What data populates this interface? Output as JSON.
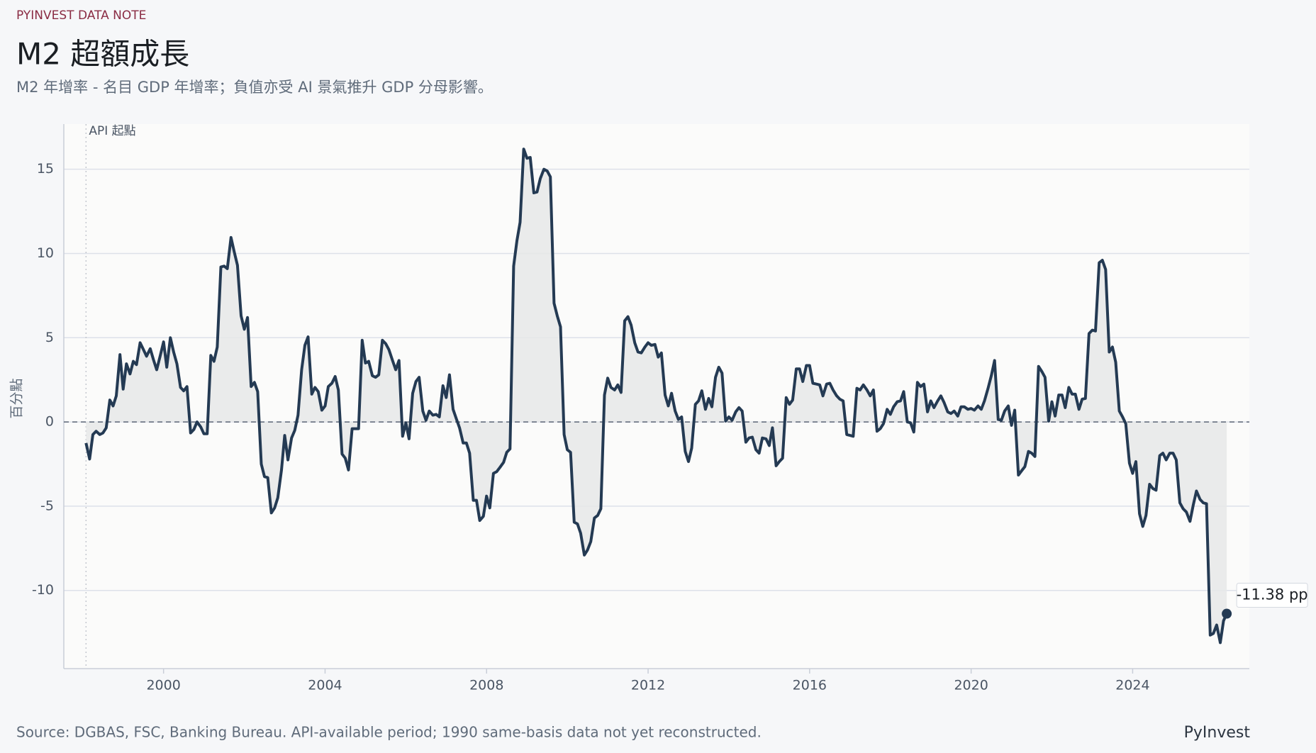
{
  "kicker": "PYINVEST DATA NOTE",
  "chart_data": {
    "type": "line",
    "title": "M2 超額成長",
    "subtitle": "M2 年增率 - 名目 GDP 年增率；負值亦受 AI 景氣推升 GDP 分母影響。",
    "y_label": "百分點",
    "color": "#243a53",
    "fill_color": "#e6e8e8",
    "grid": true,
    "xlim": [
      1997.53,
      2026.89
    ],
    "xticks": [
      2000,
      2004,
      2008,
      2012,
      2016,
      2020,
      2024
    ],
    "ylim": [
      -14.64,
      17.68
    ],
    "yticks": [
      -10,
      -5,
      0,
      5,
      10,
      15
    ],
    "reference_y": 0,
    "annotation": {
      "text": "API 起點",
      "x": 1998.08
    },
    "end_label": "-11.38 pp",
    "x": [
      1998.08,
      1998.17,
      1998.25,
      1998.33,
      1998.42,
      1998.5,
      1998.58,
      1998.67,
      1998.75,
      1998.83,
      1998.92,
      1999,
      1999.08,
      1999.17,
      1999.25,
      1999.33,
      1999.42,
      1999.5,
      1999.58,
      1999.67,
      1999.75,
      1999.83,
      1999.92,
      2000,
      2000.08,
      2000.17,
      2000.25,
      2000.33,
      2000.42,
      2000.5,
      2000.58,
      2000.67,
      2000.75,
      2000.83,
      2000.92,
      2001,
      2001.08,
      2001.17,
      2001.25,
      2001.33,
      2001.42,
      2001.5,
      2001.58,
      2001.67,
      2001.75,
      2001.83,
      2001.92,
      2002,
      2002.08,
      2002.17,
      2002.25,
      2002.33,
      2002.42,
      2002.5,
      2002.58,
      2002.67,
      2002.75,
      2002.83,
      2002.92,
      2003,
      2003.08,
      2003.17,
      2003.25,
      2003.33,
      2003.42,
      2003.5,
      2003.58,
      2003.67,
      2003.75,
      2003.83,
      2003.92,
      2004,
      2004.08,
      2004.17,
      2004.25,
      2004.33,
      2004.42,
      2004.5,
      2004.58,
      2004.67,
      2004.75,
      2004.83,
      2004.92,
      2005,
      2005.08,
      2005.17,
      2005.25,
      2005.33,
      2005.42,
      2005.5,
      2005.58,
      2005.67,
      2005.75,
      2005.83,
      2005.92,
      2006,
      2006.08,
      2006.17,
      2006.25,
      2006.33,
      2006.42,
      2006.5,
      2006.58,
      2006.67,
      2006.75,
      2006.83,
      2006.92,
      2007,
      2007.08,
      2007.17,
      2007.25,
      2007.33,
      2007.42,
      2007.5,
      2007.58,
      2007.67,
      2007.75,
      2007.83,
      2007.92,
      2008,
      2008.08,
      2008.17,
      2008.25,
      2008.33,
      2008.42,
      2008.5,
      2008.58,
      2008.67,
      2008.75,
      2008.83,
      2008.92,
      2009,
      2009.08,
      2009.17,
      2009.25,
      2009.33,
      2009.42,
      2009.5,
      2009.58,
      2009.67,
      2009.75,
      2009.83,
      2009.92,
      2010,
      2010.08,
      2010.17,
      2010.25,
      2010.33,
      2010.42,
      2010.5,
      2010.58,
      2010.67,
      2010.75,
      2010.83,
      2010.92,
      2011,
      2011.08,
      2011.17,
      2011.25,
      2011.33,
      2011.42,
      2011.5,
      2011.58,
      2011.67,
      2011.75,
      2011.83,
      2011.92,
      2012,
      2012.08,
      2012.17,
      2012.25,
      2012.33,
      2012.42,
      2012.5,
      2012.58,
      2012.67,
      2012.75,
      2012.83,
      2012.92,
      2013,
      2013.08,
      2013.17,
      2013.25,
      2013.33,
      2013.42,
      2013.5,
      2013.58,
      2013.67,
      2013.75,
      2013.83,
      2013.92,
      2014,
      2014.08,
      2014.17,
      2014.25,
      2014.33,
      2014.42,
      2014.5,
      2014.58,
      2014.67,
      2014.75,
      2014.83,
      2014.92,
      2015,
      2015.08,
      2015.17,
      2015.25,
      2015.33,
      2015.42,
      2015.5,
      2015.58,
      2015.67,
      2015.75,
      2015.83,
      2015.92,
      2016,
      2016.08,
      2016.17,
      2016.25,
      2016.33,
      2016.42,
      2016.5,
      2016.58,
      2016.67,
      2016.75,
      2016.83,
      2016.92,
      2017,
      2017.08,
      2017.17,
      2017.25,
      2017.33,
      2017.42,
      2017.5,
      2017.58,
      2017.67,
      2017.75,
      2017.83,
      2017.92,
      2018,
      2018.08,
      2018.17,
      2018.25,
      2018.33,
      2018.42,
      2018.5,
      2018.58,
      2018.67,
      2018.75,
      2018.83,
      2018.92,
      2019,
      2019.08,
      2019.17,
      2019.25,
      2019.33,
      2019.42,
      2019.5,
      2019.58,
      2019.67,
      2019.75,
      2019.83,
      2019.92,
      2020,
      2020.08,
      2020.17,
      2020.25,
      2020.33,
      2020.42,
      2020.5,
      2020.58,
      2020.67,
      2020.75,
      2020.83,
      2020.92,
      2021,
      2021.08,
      2021.17,
      2021.25,
      2021.33,
      2021.42,
      2021.5,
      2021.58,
      2021.67,
      2021.75,
      2021.83,
      2021.92,
      2022,
      2022.08,
      2022.17,
      2022.25,
      2022.33,
      2022.42,
      2022.5,
      2022.58,
      2022.67,
      2022.75,
      2022.83,
      2022.92,
      2023,
      2023.08,
      2023.17,
      2023.25,
      2023.33,
      2023.42,
      2023.5,
      2023.58,
      2023.67,
      2023.75,
      2023.83,
      2023.92,
      2024,
      2024.08,
      2024.17,
      2024.25,
      2024.33,
      2024.42,
      2024.5,
      2024.58,
      2024.67,
      2024.75,
      2024.83,
      2024.92,
      2025,
      2025.08,
      2025.17,
      2025.25,
      2025.33,
      2025.42,
      2025.5,
      2025.58,
      2025.67,
      2025.75,
      2025.83,
      2025.92,
      2026,
      2026.08,
      2026.17,
      2026.25,
      2026.33
    ],
    "values": [
      -1.25,
      -2.2,
      -0.75,
      -0.55,
      -0.75,
      -0.65,
      -0.35,
      1.3,
      0.95,
      1.55,
      4.0,
      1.95,
      3.45,
      2.85,
      3.6,
      3.4,
      4.7,
      4.3,
      3.9,
      4.35,
      3.7,
      3.1,
      3.95,
      4.75,
      3.25,
      5.0,
      4.15,
      3.45,
      2.05,
      1.85,
      2.1,
      -0.65,
      -0.45,
      0,
      -0.3,
      -0.7,
      -0.7,
      3.95,
      3.6,
      4.45,
      9.2,
      9.25,
      9.1,
      10.95,
      10.1,
      9.3,
      6.3,
      5.5,
      6.2,
      2.1,
      2.35,
      1.8,
      -2.5,
      -3.25,
      -3.3,
      -5.4,
      -5.1,
      -4.5,
      -2.85,
      -0.8,
      -2.25,
      -0.95,
      -0.5,
      0.4,
      3.1,
      4.55,
      5.05,
      1.65,
      2.05,
      1.8,
      0.7,
      0.95,
      2.1,
      2.3,
      2.7,
      1.9,
      -1.9,
      -2.15,
      -2.85,
      -0.4,
      -0.4,
      -0.4,
      4.85,
      3.5,
      3.6,
      2.75,
      2.65,
      2.8,
      4.85,
      4.65,
      4.3,
      3.65,
      3.1,
      3.65,
      -0.85,
      -0.05,
      -1.0,
      1.7,
      2.4,
      2.65,
      0.65,
      0.1,
      0.65,
      0.4,
      0.45,
      0.3,
      2.15,
      1.45,
      2.8,
      0.75,
      0.2,
      -0.35,
      -1.25,
      -1.25,
      -1.85,
      -4.65,
      -4.65,
      -5.85,
      -5.6,
      -4.4,
      -5.1,
      -3.05,
      -2.95,
      -2.7,
      -2.4,
      -1.8,
      -1.6,
      9.25,
      10.75,
      11.85,
      16.2,
      15.65,
      15.7,
      13.6,
      13.65,
      14.45,
      15.0,
      14.9,
      14.55,
      7.05,
      6.3,
      5.65,
      -0.75,
      -1.65,
      -1.8,
      -5.95,
      -6.05,
      -6.6,
      -7.9,
      -7.6,
      -7.1,
      -5.7,
      -5.55,
      -5.15,
      1.6,
      2.6,
      2.05,
      1.9,
      2.2,
      1.75,
      6.0,
      6.25,
      5.75,
      4.7,
      4.15,
      4.1,
      4.45,
      4.7,
      4.55,
      4.6,
      3.85,
      4.1,
      1.6,
      0.95,
      1.7,
      0.65,
      0.15,
      0.3,
      -1.75,
      -2.35,
      -1.55,
      1.05,
      1.25,
      1.85,
      0.75,
      1.4,
      0.9,
      2.65,
      3.25,
      2.9,
      0.05,
      0.3,
      0.1,
      0.6,
      0.85,
      0.65,
      -1.2,
      -0.95,
      -0.9,
      -1.65,
      -1.85,
      -0.95,
      -1.0,
      -1.4,
      -0.35,
      -2.6,
      -2.35,
      -2.15,
      1.45,
      1.05,
      1.3,
      3.15,
      3.15,
      2.4,
      3.35,
      3.35,
      2.3,
      2.25,
      2.2,
      1.55,
      2.25,
      2.3,
      1.9,
      1.55,
      1.35,
      1.25,
      -0.75,
      -0.8,
      -0.85,
      2.0,
      1.9,
      2.2,
      1.9,
      1.55,
      1.9,
      -0.55,
      -0.4,
      -0.1,
      0.75,
      0.45,
      0.9,
      1.2,
      1.25,
      1.8,
      0,
      -0.05,
      -0.6,
      2.35,
      2.1,
      2.25,
      0.6,
      1.25,
      0.85,
      1.25,
      1.55,
      1.15,
      0.6,
      0.5,
      0.65,
      0.35,
      0.9,
      0.9,
      0.75,
      0.8,
      0.7,
      0.95,
      0.75,
      1.25,
      2.0,
      2.75,
      3.65,
      0.15,
      0.1,
      0.65,
      0.95,
      -0.2,
      0.7,
      -3.15,
      -2.9,
      -2.65,
      -1.75,
      -1.85,
      -2.05,
      3.3,
      3.0,
      2.65,
      0.05,
      1.2,
      0.35,
      1.6,
      1.6,
      0.85,
      2.05,
      1.65,
      1.65,
      0.75,
      1.35,
      1.4,
      5.25,
      5.45,
      5.4,
      9.45,
      9.6,
      9.05,
      4.15,
      4.45,
      3.55,
      0.65,
      0.3,
      -0.1,
      -2.45,
      -3.05,
      -2.35,
      -5.45,
      -6.2,
      -5.55,
      -3.7,
      -3.95,
      -4.05,
      -2.0,
      -1.85,
      -2.25,
      -1.85,
      -1.85,
      -2.25,
      -4.8,
      -5.15,
      -5.35,
      -5.9,
      -4.95,
      -4.1,
      -4.6,
      -4.8,
      -4.85,
      -12.65,
      -12.55,
      -12.05,
      -13.1,
      -11.8,
      -11.38
    ],
    "source": "Source: DGBAS, FSC, Banking Bureau. API-available period; 1990 same-basis data not yet reconstructed.",
    "brand": "PyInvest"
  }
}
